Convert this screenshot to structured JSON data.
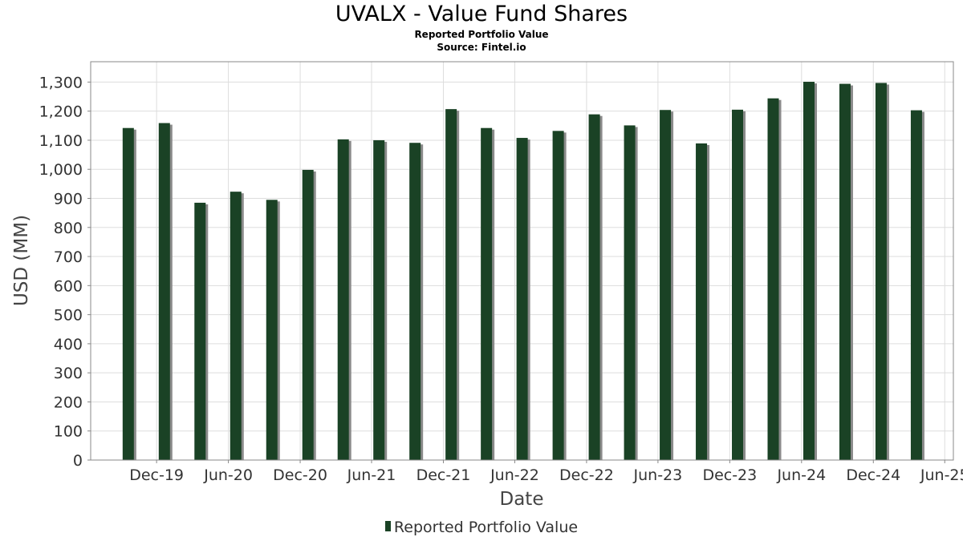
{
  "colors": {
    "bar": "#1a4225",
    "bar_shadow": "#8a8a8a",
    "grid": "#dddddd",
    "plot_border": "#888888",
    "background": "#ffffff"
  },
  "chart_data": {
    "type": "bar",
    "title": "UVALX - Value Fund Shares",
    "subtitle": "Reported Portfolio Value",
    "source": "Source: Fintel.io",
    "xlabel": "Date",
    "ylabel": "USD (MM)",
    "ylim": [
      0,
      1370
    ],
    "xlim": [
      "2019-06-16",
      "2025-06-23"
    ],
    "grid": true,
    "legend_position": "bottom-center",
    "y_ticks": [
      0,
      100,
      200,
      300,
      400,
      500,
      600,
      700,
      800,
      900,
      1000,
      1100,
      1200,
      1300
    ],
    "y_tick_labels": [
      "0",
      "100",
      "200",
      "300",
      "400",
      "500",
      "600",
      "700",
      "800",
      "900",
      "1,000",
      "1,100",
      "1,200",
      "1,300"
    ],
    "x_ticks": [
      "2019-12-01",
      "2020-06-01",
      "2020-12-01",
      "2021-06-01",
      "2021-12-01",
      "2022-06-01",
      "2022-12-01",
      "2023-06-01",
      "2023-12-01",
      "2024-06-01",
      "2024-12-01",
      "2025-06-01"
    ],
    "x_tick_labels": [
      "Dec-19",
      "Jun-20",
      "Dec-20",
      "Jun-21",
      "Dec-21",
      "Jun-22",
      "Dec-22",
      "Jun-23",
      "Dec-23",
      "Jun-24",
      "Dec-24",
      "Jun-25"
    ],
    "series": [
      {
        "name": "Reported Portfolio Value",
        "x": [
          "2019-09-30",
          "2019-12-31",
          "2020-03-31",
          "2020-06-30",
          "2020-09-30",
          "2020-12-31",
          "2021-03-31",
          "2021-06-30",
          "2021-09-30",
          "2021-12-31",
          "2022-03-31",
          "2022-06-30",
          "2022-09-30",
          "2022-12-31",
          "2023-03-31",
          "2023-06-30",
          "2023-09-30",
          "2023-12-31",
          "2024-03-31",
          "2024-06-30",
          "2024-09-30",
          "2024-12-31",
          "2025-03-31"
        ],
        "values": [
          1142,
          1159,
          885,
          923,
          895,
          998,
          1103,
          1100,
          1091,
          1207,
          1142,
          1108,
          1132,
          1189,
          1151,
          1204,
          1089,
          1205,
          1244,
          1301,
          1294,
          1297,
          1203
        ]
      }
    ]
  }
}
